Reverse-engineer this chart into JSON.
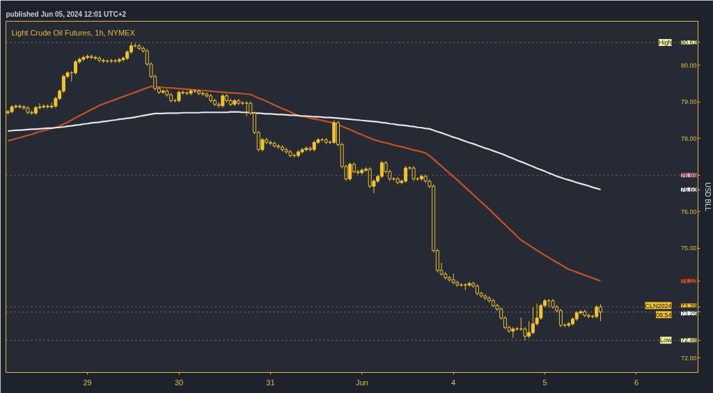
{
  "chart_data": {
    "type": "candlestick",
    "title": "Light Crude Oil Futures, 1h, NYMEX",
    "subtitle": "published Jun 05, 2024 12:01 UTC+2",
    "ylabel": "USD BLL",
    "color": "#f2c230",
    "categories": [
      null,
      null,
      null,
      null,
      null,
      null,
      null,
      null,
      null,
      null,
      null,
      null,
      null,
      null,
      null,
      null,
      null,
      null,
      null,
      null,
      "29",
      null,
      null,
      null,
      null,
      null,
      null,
      null,
      null,
      null,
      null,
      null,
      null,
      null,
      null,
      null,
      null,
      null,
      null,
      null,
      null,
      null,
      null,
      "30",
      null,
      null,
      null,
      null,
      null,
      null,
      null,
      null,
      null,
      null,
      null,
      null,
      null,
      null,
      null,
      null,
      null,
      null,
      null,
      null,
      null,
      null,
      "31",
      null,
      null,
      null,
      null,
      null,
      null,
      null,
      null,
      null,
      null,
      null,
      null,
      null,
      null,
      null,
      null,
      null,
      null,
      null,
      null,
      null,
      null,
      "Jun",
      null,
      null,
      null,
      null,
      null,
      null,
      null,
      null,
      null,
      null,
      null,
      null,
      null,
      null,
      null,
      null,
      null,
      null,
      null,
      null,
      null,
      null,
      "4",
      null,
      null,
      null,
      null,
      null,
      null,
      null,
      null,
      null,
      null,
      null,
      null,
      null,
      null,
      null,
      null,
      null,
      null,
      null,
      null,
      null,
      null,
      "5",
      null,
      null,
      null,
      null,
      null,
      null,
      null,
      null,
      null,
      null,
      null,
      null,
      null,
      null,
      null,
      null,
      null,
      null,
      null,
      null,
      null,
      null,
      "6",
      null,
      null,
      null,
      null,
      null,
      null,
      null,
      null,
      null,
      null,
      null,
      null,
      null,
      null,
      null
    ],
    "ohlc": [
      [
        78.7,
        78.78,
        78.65,
        78.73
      ],
      [
        78.73,
        78.91,
        78.68,
        78.86
      ],
      [
        78.86,
        78.93,
        78.81,
        78.88
      ],
      [
        78.88,
        78.93,
        78.81,
        78.86
      ],
      [
        78.86,
        78.91,
        78.78,
        78.83
      ],
      [
        78.83,
        78.88,
        78.66,
        78.71
      ],
      [
        78.71,
        78.76,
        78.64,
        78.69
      ],
      [
        78.69,
        78.89,
        78.64,
        78.84
      ],
      [
        78.84,
        78.96,
        78.79,
        78.86
      ],
      [
        78.86,
        78.93,
        78.81,
        78.88
      ],
      [
        78.88,
        78.93,
        78.81,
        78.86
      ],
      [
        78.86,
        78.98,
        78.81,
        78.88
      ],
      [
        78.88,
        79.14,
        78.83,
        79.09
      ],
      [
        79.09,
        79.34,
        79.04,
        79.29
      ],
      [
        79.29,
        79.74,
        79.24,
        79.69
      ],
      [
        79.69,
        79.84,
        79.64,
        79.79
      ],
      [
        79.79,
        79.84,
        79.56,
        79.79
      ],
      [
        79.79,
        80.14,
        79.74,
        80.09
      ],
      [
        80.09,
        80.21,
        80.04,
        80.16
      ],
      [
        80.16,
        80.26,
        80.11,
        80.21
      ],
      [
        80.21,
        80.29,
        80.16,
        80.24
      ],
      [
        80.24,
        80.29,
        80.16,
        80.21
      ],
      [
        80.21,
        80.26,
        80.14,
        80.19
      ],
      [
        80.19,
        80.24,
        80.08,
        80.13
      ],
      [
        80.13,
        80.18,
        80.06,
        80.11
      ],
      [
        80.11,
        80.16,
        80.06,
        80.11
      ],
      [
        80.11,
        80.17,
        80.06,
        80.12
      ],
      [
        80.12,
        80.17,
        80.06,
        80.11
      ],
      [
        80.11,
        80.2,
        80.06,
        80.15
      ],
      [
        80.15,
        80.24,
        80.1,
        80.19
      ],
      [
        80.19,
        80.41,
        80.14,
        80.36
      ],
      [
        80.36,
        80.62,
        80.31,
        80.53
      ],
      [
        80.53,
        80.6,
        80.48,
        80.53
      ],
      [
        80.53,
        80.58,
        80.41,
        80.46
      ],
      [
        80.46,
        80.51,
        80.34,
        80.39
      ],
      [
        80.39,
        80.44,
        79.98,
        80.03
      ],
      [
        80.03,
        80.08,
        79.64,
        79.69
      ],
      [
        79.69,
        79.74,
        79.31,
        79.36
      ],
      [
        79.36,
        79.41,
        79.21,
        79.26
      ],
      [
        79.26,
        79.34,
        79.21,
        79.29
      ],
      [
        79.29,
        79.34,
        79.14,
        79.19
      ],
      [
        79.19,
        79.24,
        78.98,
        79.03
      ],
      [
        79.03,
        79.08,
        78.98,
        79.03
      ],
      [
        79.03,
        79.31,
        78.98,
        79.26
      ],
      [
        79.26,
        79.31,
        79.19,
        79.24
      ],
      [
        79.24,
        79.29,
        79.18,
        79.23
      ],
      [
        79.23,
        79.34,
        79.18,
        79.29
      ],
      [
        79.29,
        79.34,
        79.24,
        79.29
      ],
      [
        79.29,
        79.34,
        79.18,
        79.23
      ],
      [
        79.23,
        79.28,
        79.16,
        79.21
      ],
      [
        79.21,
        79.26,
        79.11,
        79.16
      ],
      [
        79.16,
        79.21,
        78.98,
        79.03
      ],
      [
        79.03,
        79.08,
        78.88,
        78.93
      ],
      [
        78.93,
        78.98,
        78.84,
        78.89
      ],
      [
        78.89,
        79.21,
        78.84,
        79.16
      ],
      [
        79.16,
        79.21,
        78.98,
        79.03
      ],
      [
        79.03,
        79.08,
        78.88,
        78.93
      ],
      [
        78.93,
        79.08,
        78.88,
        79.03
      ],
      [
        79.03,
        79.08,
        78.91,
        78.96
      ],
      [
        78.96,
        79.01,
        78.91,
        78.96
      ],
      [
        78.96,
        79.01,
        78.6,
        78.96
      ],
      [
        78.96,
        79.01,
        78.64,
        78.69
      ],
      [
        78.69,
        78.74,
        78.11,
        78.16
      ],
      [
        78.16,
        78.21,
        77.64,
        77.69
      ],
      [
        77.69,
        78.01,
        77.64,
        77.96
      ],
      [
        77.96,
        78.01,
        77.84,
        77.89
      ],
      [
        77.89,
        77.94,
        77.81,
        77.86
      ],
      [
        77.86,
        77.91,
        77.74,
        77.79
      ],
      [
        77.79,
        77.84,
        77.71,
        77.76
      ],
      [
        77.76,
        77.81,
        77.64,
        77.69
      ],
      [
        77.69,
        77.74,
        77.58,
        77.63
      ],
      [
        77.63,
        77.68,
        77.48,
        77.53
      ],
      [
        77.53,
        77.58,
        77.48,
        77.53
      ],
      [
        77.53,
        77.68,
        77.48,
        77.63
      ],
      [
        77.63,
        77.74,
        77.58,
        77.69
      ],
      [
        77.69,
        77.78,
        77.64,
        77.73
      ],
      [
        77.73,
        77.78,
        77.64,
        77.69
      ],
      [
        77.69,
        77.94,
        77.64,
        77.89
      ],
      [
        77.89,
        78.01,
        77.84,
        77.96
      ],
      [
        77.96,
        78.01,
        77.91,
        77.96
      ],
      [
        77.96,
        78.01,
        77.84,
        77.89
      ],
      [
        77.89,
        77.94,
        77.84,
        77.89
      ],
      [
        77.89,
        78.5,
        77.84,
        78.43
      ],
      [
        78.43,
        78.48,
        77.78,
        77.83
      ],
      [
        77.83,
        77.88,
        77.18,
        77.23
      ],
      [
        77.23,
        77.28,
        76.84,
        76.89
      ],
      [
        76.89,
        77.34,
        76.84,
        77.29
      ],
      [
        77.29,
        77.34,
        77.04,
        77.09
      ],
      [
        77.09,
        77.14,
        77.01,
        77.06
      ],
      [
        77.06,
        77.18,
        77.01,
        77.13
      ],
      [
        77.13,
        77.21,
        77.08,
        77.16
      ],
      [
        77.16,
        77.21,
        76.64,
        76.69
      ],
      [
        76.69,
        76.88,
        76.5,
        76.83
      ],
      [
        76.83,
        77.01,
        76.78,
        76.96
      ],
      [
        76.96,
        77.38,
        76.91,
        77.33
      ],
      [
        77.33,
        77.38,
        77.04,
        77.09
      ],
      [
        77.09,
        77.14,
        76.84,
        76.89
      ],
      [
        76.89,
        76.94,
        76.84,
        76.89
      ],
      [
        76.89,
        76.94,
        76.74,
        76.79
      ],
      [
        76.79,
        76.88,
        76.74,
        76.83
      ],
      [
        76.83,
        77.24,
        76.78,
        77.19
      ],
      [
        77.19,
        77.24,
        77.14,
        77.19
      ],
      [
        77.19,
        77.24,
        76.84,
        76.89
      ],
      [
        76.89,
        76.94,
        76.84,
        76.89
      ],
      [
        76.89,
        77.01,
        76.84,
        76.96
      ],
      [
        76.96,
        77.01,
        76.78,
        76.83
      ],
      [
        76.83,
        76.88,
        76.64,
        76.69
      ],
      [
        76.69,
        76.74,
        74.88,
        74.93
      ],
      [
        74.93,
        74.98,
        74.34,
        74.39
      ],
      [
        74.39,
        74.6,
        74.24,
        74.29
      ],
      [
        74.29,
        74.34,
        74.14,
        74.19
      ],
      [
        74.19,
        74.24,
        74.08,
        74.13
      ],
      [
        74.13,
        74.3,
        74.01,
        74.06
      ],
      [
        74.06,
        74.11,
        73.94,
        73.99
      ],
      [
        73.99,
        74.04,
        73.94,
        73.99
      ],
      [
        73.99,
        74.04,
        73.85,
        73.99
      ],
      [
        73.99,
        74.08,
        73.94,
        74.03
      ],
      [
        74.03,
        74.08,
        73.91,
        73.96
      ],
      [
        73.96,
        74.01,
        73.71,
        73.76
      ],
      [
        73.76,
        73.81,
        73.64,
        73.69
      ],
      [
        73.69,
        73.74,
        73.58,
        73.63
      ],
      [
        73.63,
        73.68,
        73.51,
        73.56
      ],
      [
        73.56,
        73.61,
        73.38,
        73.43
      ],
      [
        73.43,
        73.48,
        73.28,
        73.33
      ],
      [
        73.33,
        73.38,
        73.04,
        73.09
      ],
      [
        73.09,
        73.14,
        72.78,
        72.83
      ],
      [
        72.83,
        72.88,
        72.68,
        72.73
      ],
      [
        72.73,
        72.84,
        72.55,
        72.79
      ],
      [
        72.79,
        72.84,
        72.74,
        72.79
      ],
      [
        72.79,
        73.1,
        72.74,
        72.79
      ],
      [
        72.79,
        72.84,
        72.48,
        72.59
      ],
      [
        72.59,
        73.0,
        72.54,
        72.69
      ],
      [
        72.69,
        73.38,
        72.64,
        72.93
      ],
      [
        72.93,
        73.48,
        72.88,
        73.09
      ],
      [
        73.09,
        73.48,
        73.04,
        73.43
      ],
      [
        73.43,
        73.61,
        73.38,
        73.56
      ],
      [
        73.56,
        73.61,
        73.38,
        73.56
      ],
      [
        73.56,
        73.61,
        73.34,
        73.39
      ],
      [
        73.39,
        73.44,
        73.24,
        73.29
      ],
      [
        73.29,
        73.34,
        72.84,
        72.89
      ],
      [
        72.89,
        72.94,
        72.84,
        72.89
      ],
      [
        72.89,
        72.98,
        72.84,
        72.93
      ],
      [
        72.93,
        73.11,
        72.88,
        73.06
      ],
      [
        73.06,
        73.28,
        73.01,
        73.23
      ],
      [
        73.23,
        73.31,
        73.18,
        73.26
      ],
      [
        73.26,
        73.31,
        73.11,
        73.16
      ],
      [
        73.16,
        73.21,
        73.08,
        73.13
      ],
      [
        73.13,
        73.18,
        73.08,
        73.13
      ],
      [
        73.13,
        73.44,
        73.08,
        73.39
      ],
      [
        73.39,
        73.47,
        73.0,
        73.25
      ],
      null,
      null,
      null,
      null,
      null,
      null,
      null,
      null,
      null,
      null,
      null,
      null,
      null,
      null,
      null,
      null,
      null,
      null,
      null,
      null,
      null,
      null,
      null,
      null
    ],
    "series": [
      {
        "type": "line",
        "color": "#c8521f",
        "values": [
          77.93,
          77.96,
          77.99,
          78.02,
          78.05,
          78.08,
          78.11,
          78.15,
          78.18,
          78.21,
          78.24,
          78.27,
          78.3,
          78.33,
          78.39,
          78.44,
          78.5,
          78.56,
          78.62,
          78.67,
          78.73,
          78.79,
          78.84,
          78.9,
          78.94,
          78.98,
          79.02,
          79.06,
          79.1,
          79.14,
          79.18,
          79.22,
          79.26,
          79.3,
          79.34,
          79.38,
          79.42,
          79.41,
          79.4,
          79.39,
          79.38,
          79.38,
          79.37,
          79.36,
          79.35,
          79.34,
          79.33,
          79.32,
          79.31,
          79.31,
          79.3,
          79.29,
          79.28,
          79.27,
          79.26,
          79.25,
          79.24,
          79.24,
          79.23,
          79.22,
          79.21,
          79.2,
          79.15,
          79.1,
          79.06,
          79.01,
          78.96,
          78.91,
          78.86,
          78.81,
          78.77,
          78.72,
          78.67,
          78.62,
          78.6,
          78.58,
          78.55,
          78.53,
          78.51,
          78.49,
          78.46,
          78.44,
          78.42,
          78.37,
          78.33,
          78.28,
          78.24,
          78.19,
          78.14,
          78.1,
          78.05,
          78.01,
          77.96,
          77.93,
          77.9,
          77.88,
          77.85,
          77.82,
          77.79,
          77.77,
          77.74,
          77.71,
          77.68,
          77.66,
          77.63,
          77.6,
          77.52,
          77.43,
          77.33,
          77.24,
          77.14,
          77.05,
          76.95,
          76.86,
          76.76,
          76.66,
          76.56,
          76.46,
          76.36,
          76.26,
          76.16,
          76.06,
          75.95,
          75.85,
          75.74,
          75.64,
          75.53,
          75.43,
          75.32,
          75.22,
          75.15,
          75.08,
          75.01,
          74.94,
          74.87,
          74.8,
          74.74,
          74.67,
          74.61,
          74.55,
          74.48,
          74.42,
          74.38,
          74.34,
          74.3,
          74.26,
          74.22,
          74.18,
          74.14,
          74.1,
          null,
          null,
          null,
          null,
          null,
          null,
          null,
          null,
          null,
          null,
          null,
          null,
          null,
          null,
          null,
          null,
          null,
          null,
          null,
          null,
          null,
          null,
          null,
          null
        ]
      },
      {
        "type": "line",
        "color": "#e6e6e6",
        "values": [
          78.2,
          78.21,
          78.22,
          78.22,
          78.23,
          78.24,
          78.25,
          78.25,
          78.26,
          78.27,
          78.28,
          78.28,
          78.29,
          78.3,
          78.31,
          78.33,
          78.34,
          78.36,
          78.37,
          78.39,
          78.4,
          78.42,
          78.43,
          78.44,
          78.46,
          78.47,
          78.49,
          78.5,
          78.52,
          78.53,
          78.55,
          78.56,
          78.58,
          78.6,
          78.62,
          78.64,
          78.66,
          78.68,
          78.68,
          78.68,
          78.69,
          78.69,
          78.69,
          78.69,
          78.7,
          78.7,
          78.7,
          78.7,
          78.7,
          78.71,
          78.71,
          78.71,
          78.71,
          78.71,
          78.71,
          78.71,
          78.72,
          78.72,
          78.72,
          78.71,
          78.71,
          78.7,
          78.69,
          78.69,
          78.68,
          78.67,
          78.67,
          78.66,
          78.65,
          78.65,
          78.64,
          78.63,
          78.63,
          78.62,
          78.61,
          78.61,
          78.6,
          78.59,
          78.59,
          78.58,
          78.57,
          78.57,
          78.56,
          78.55,
          78.54,
          78.53,
          78.52,
          78.51,
          78.5,
          78.49,
          78.48,
          78.47,
          78.46,
          78.45,
          78.43,
          78.42,
          78.4,
          78.39,
          78.37,
          78.36,
          78.35,
          78.33,
          78.32,
          78.3,
          78.29,
          78.27,
          78.26,
          78.22,
          78.18,
          78.15,
          78.11,
          78.07,
          78.03,
          78.0,
          77.96,
          77.92,
          77.88,
          77.85,
          77.81,
          77.77,
          77.73,
          77.7,
          77.66,
          77.62,
          77.58,
          77.54,
          77.49,
          77.45,
          77.4,
          77.36,
          77.32,
          77.27,
          77.23,
          77.18,
          77.14,
          77.1,
          77.05,
          77.01,
          76.96,
          76.93,
          76.89,
          76.86,
          76.83,
          76.79,
          76.76,
          76.73,
          76.7,
          76.66,
          76.63,
          76.6,
          null,
          null,
          null,
          null,
          null,
          null,
          null,
          null,
          null,
          null,
          null,
          null,
          null,
          null,
          null,
          null,
          null,
          null,
          null,
          null,
          null,
          null,
          null,
          null
        ]
      }
    ],
    "ref_lines": [
      {
        "axis": "y",
        "value": 80.62,
        "label": "High",
        "color": "#f7eea0",
        "line_style": "dotted"
      },
      {
        "axis": "y",
        "value": 76.99,
        "label": null,
        "color": "#f2a3a3",
        "line_style": "dotted"
      },
      {
        "axis": "y",
        "value": 73.39,
        "label": "CLN2024",
        "color": "#f2c230",
        "line_style": "dotted"
      },
      {
        "axis": "y",
        "value": 73.25,
        "label": null,
        "color": "#ffffff",
        "line_style": "dotted"
      },
      {
        "axis": "y",
        "value": 72.48,
        "label": "Low",
        "color": "#f7eea0",
        "line_style": "dotted"
      }
    ],
    "annotations": [
      "08:54"
    ],
    "ylim": [
      71.6,
      81.2
    ],
    "yticks": [
      {
        "value": 72,
        "label": "72.00"
      },
      {
        "value": 72.48,
        "label": "72.48"
      },
      {
        "value": 73.25,
        "label": "73.25"
      },
      {
        "value": 73.39,
        "label": "73.39"
      },
      {
        "value": 74.1,
        "label": "74.10"
      },
      {
        "value": 75,
        "label": "75.00"
      },
      {
        "value": 76,
        "label": "76.00"
      },
      {
        "value": 76.6,
        "label": "76.60"
      },
      {
        "value": 76.99,
        "label": "76.99"
      },
      {
        "value": 78,
        "label": "78.00"
      },
      {
        "value": 79,
        "label": "79.00"
      },
      {
        "value": 80,
        "label": "80.00"
      },
      {
        "value": 80.62,
        "label": "80.62"
      }
    ],
    "grid": false
  }
}
